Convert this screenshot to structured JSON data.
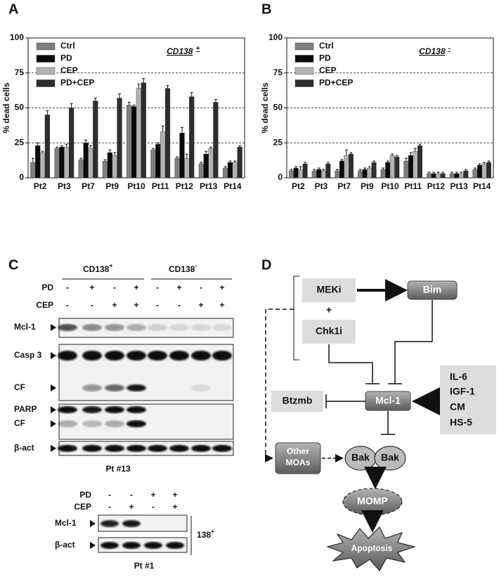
{
  "panels": {
    "a": "A",
    "b": "B",
    "c": "C",
    "d": "D"
  },
  "chart_data": [
    {
      "type": "bar",
      "ylabel": "% dead cells",
      "annotation": "CD138",
      "annotation_sup": "+",
      "categories": [
        "Pt2",
        "Pt3",
        "Pt7",
        "Pt9",
        "Pt10",
        "Pt11",
        "Pt12",
        "Pt13",
        "Pt14"
      ],
      "series": [
        {
          "name": "Ctrl",
          "color": "#7f7f7f",
          "values": [
            11,
            21,
            13,
            12,
            52,
            20,
            14,
            10,
            7
          ],
          "errors": [
            3,
            1,
            1,
            1,
            2,
            1,
            1,
            1,
            1
          ]
        },
        {
          "name": "PD",
          "color": "#0a0a0a",
          "values": [
            23,
            22,
            25,
            18,
            51,
            24,
            32,
            17,
            11
          ],
          "errors": [
            2,
            1,
            2,
            2,
            1,
            1,
            4,
            2,
            1
          ]
        },
        {
          "name": "CEP",
          "color": "#b3b3b3",
          "values": [
            18,
            22,
            21,
            16,
            64,
            33,
            14,
            21,
            11
          ],
          "errors": [
            1,
            2,
            2,
            2,
            3,
            4,
            3,
            1,
            1
          ]
        },
        {
          "name": "PD+CEP",
          "color": "#2e2e2e",
          "values": [
            45,
            50,
            55,
            57,
            68,
            64,
            58,
            54,
            22
          ],
          "errors": [
            3,
            3,
            2,
            3,
            3,
            2,
            3,
            2,
            1
          ]
        }
      ],
      "ylim": [
        0,
        100
      ],
      "yticks": [
        0,
        25,
        50,
        75,
        100
      ],
      "grid": true,
      "legend": "upper-left"
    },
    {
      "type": "bar",
      "ylabel": "% dead cells",
      "annotation": "CD138",
      "annotation_sup": "-",
      "categories": [
        "Pt2",
        "Pt3",
        "Pt7",
        "Pt9",
        "Pt10",
        "Pt11",
        "Pt12",
        "Pt13",
        "Pt14"
      ],
      "series": [
        {
          "name": "Ctrl",
          "color": "#7f7f7f",
          "values": [
            5,
            5,
            5,
            5,
            6,
            12,
            3,
            3,
            6
          ],
          "errors": [
            1,
            1,
            1,
            1,
            1,
            2,
            1,
            1,
            1
          ]
        },
        {
          "name": "PD",
          "color": "#0a0a0a",
          "values": [
            7,
            6,
            12,
            6,
            11,
            16,
            3,
            3,
            9
          ],
          "errors": [
            1,
            1,
            1,
            1,
            1,
            2,
            1,
            1,
            1
          ]
        },
        {
          "name": "CEP",
          "color": "#b3b3b3",
          "values": [
            6,
            5,
            16,
            7,
            16,
            19,
            3,
            3,
            10
          ],
          "errors": [
            2,
            1,
            4,
            1,
            1,
            2,
            1,
            1,
            1
          ]
        },
        {
          "name": "PD+CEP",
          "color": "#2e2e2e",
          "values": [
            10,
            10,
            17,
            11,
            15,
            23,
            3,
            5,
            11
          ],
          "errors": [
            1,
            1,
            1,
            1,
            1,
            1,
            1,
            1,
            1
          ]
        }
      ],
      "ylim": [
        0,
        100
      ],
      "yticks": [
        0,
        25,
        50,
        75,
        100
      ],
      "grid": true,
      "legend": "upper-left"
    }
  ],
  "blot_c": {
    "group1": "CD138",
    "group1_sup": "+",
    "group2": "CD138",
    "group2_sup": "-",
    "row_labels": [
      "PD",
      "CEP"
    ],
    "pd_signs": [
      "-",
      "+",
      "-",
      "+",
      "-",
      "+",
      "-",
      "+"
    ],
    "cep_signs": [
      "-",
      "-",
      "+",
      "+",
      "-",
      "-",
      "+",
      "+"
    ],
    "bands": [
      "Mcl-1",
      "Casp 3",
      "CF",
      "PARP",
      "CF",
      "β-act"
    ],
    "caption": "Pt #13"
  },
  "blot_c2": {
    "row_labels": [
      "PD",
      "CEP"
    ],
    "pd_signs": [
      "-",
      "-",
      "+",
      "+"
    ],
    "cep_signs": [
      "-",
      "+",
      "-",
      "+"
    ],
    "bands": [
      "Mcl-1",
      "β-act"
    ],
    "group": "138",
    "group_sup": "+",
    "caption": "Pt #1"
  },
  "diagram": {
    "meki": "MEKi",
    "bim": "Bim",
    "plus": "+",
    "chk1i": "Chk1i",
    "cytokines": [
      "IL-6",
      "IGF-1",
      "CM",
      "HS-5"
    ],
    "btzmb": "Btzmb",
    "mcl1": "Mcl-1",
    "other": [
      "Other",
      "MOAs"
    ],
    "bak1": "Bak",
    "bak2": "Bak",
    "momp": "MOMP",
    "apoptosis": "Apoptosis"
  }
}
